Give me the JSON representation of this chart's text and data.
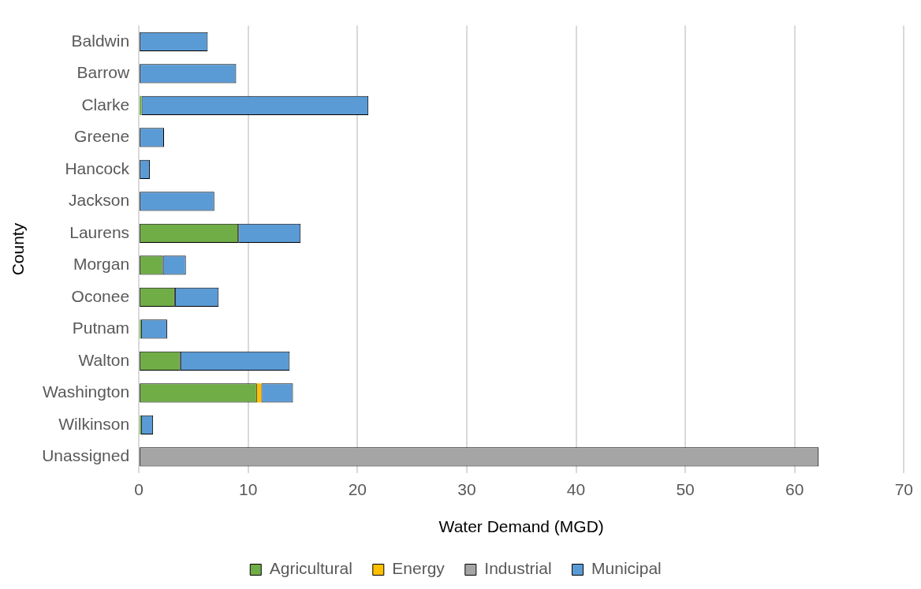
{
  "chart_data": {
    "type": "bar",
    "orientation": "horizontal",
    "stacked": true,
    "xlabel": "Water Demand (MGD)",
    "ylabel": "County",
    "categories": [
      "Baldwin",
      "Barrow",
      "Clarke",
      "Greene",
      "Hancock",
      "Jackson",
      "Laurens",
      "Morgan",
      "Oconee",
      "Putnam",
      "Walton",
      "Washington",
      "Wilkinson",
      "Unassigned"
    ],
    "series": [
      {
        "name": "Agricultural",
        "color": "#70ad47",
        "values": [
          null,
          null,
          0.25,
          null,
          null,
          null,
          9.1,
          2.2,
          3.3,
          0.2,
          3.8,
          10.8,
          0.2,
          null
        ]
      },
      {
        "name": "Energy",
        "color": "#ffc000",
        "values": [
          null,
          null,
          null,
          null,
          null,
          null,
          null,
          null,
          null,
          null,
          null,
          0.4,
          null,
          null
        ]
      },
      {
        "name": "Industrial",
        "color": "#a5a5a5",
        "values": [
          null,
          null,
          null,
          null,
          null,
          null,
          null,
          null,
          null,
          null,
          null,
          null,
          null,
          62.2
        ]
      },
      {
        "name": "Municipal",
        "color": "#5b9bd5",
        "values": [
          6.3,
          8.9,
          20.75,
          2.3,
          1.0,
          6.9,
          5.7,
          2.1,
          4.0,
          2.4,
          10.0,
          2.9,
          1.1,
          null
        ]
      }
    ],
    "xlim": [
      0,
      70
    ],
    "xticks": [
      0,
      10,
      20,
      30,
      40,
      50,
      60,
      70
    ],
    "grid": "x",
    "legend": "bottom"
  }
}
